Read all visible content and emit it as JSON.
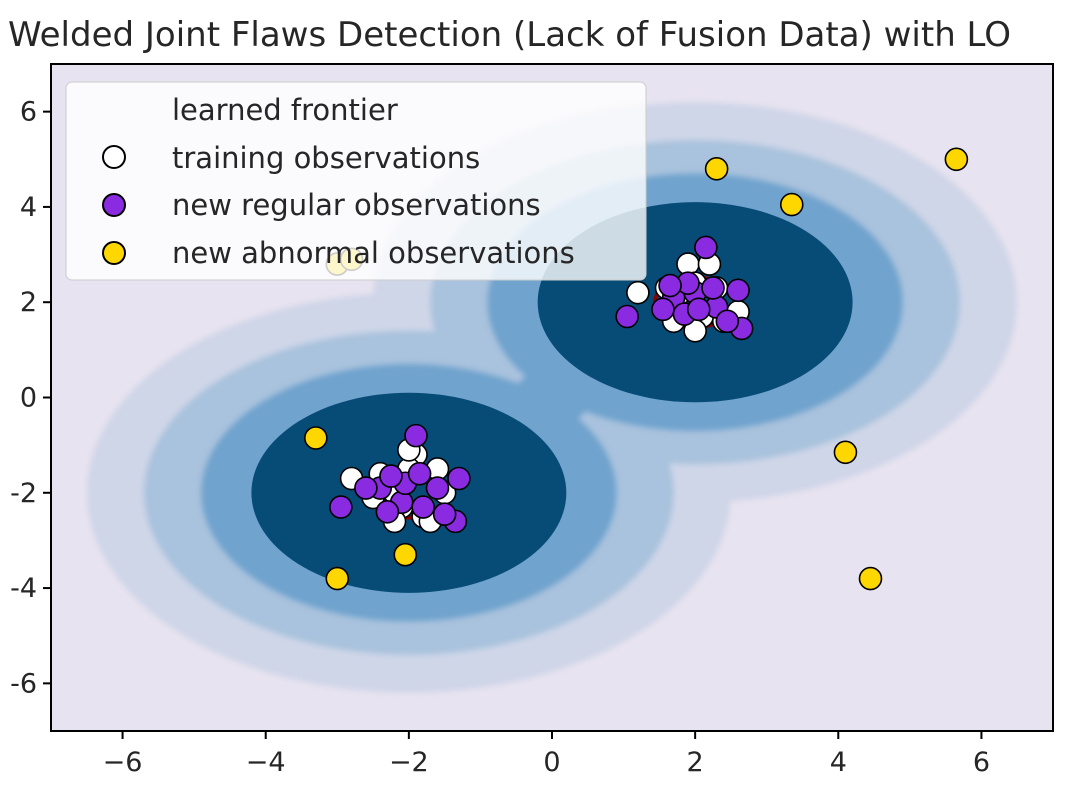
{
  "chart_data": {
    "type": "scatter",
    "title": "Welded Joint Flaws Detection (Lack of Fusion Data) with LO",
    "xlabel": "",
    "ylabel": "",
    "xlim": [
      -7,
      7
    ],
    "ylim": [
      -7,
      7
    ],
    "xticks": [
      -6,
      -4,
      -2,
      0,
      2,
      4,
      6
    ],
    "yticks": [
      -6,
      -4,
      -2,
      0,
      2,
      4,
      6
    ],
    "xtick_labels": [
      "−6",
      "−4",
      "−2",
      "0",
      "2",
      "4",
      "6"
    ],
    "ytick_labels": [
      "-6",
      "-4",
      "-2",
      "0",
      "2",
      "4",
      "6"
    ],
    "grid": false,
    "legend_position": "top-left",
    "legend": [
      {
        "label": "learned frontier",
        "marker": "none"
      },
      {
        "label": "training observations",
        "marker": "circle",
        "color": "#ffffff"
      },
      {
        "label": "new regular observations",
        "marker": "circle",
        "color": "#8a2be2"
      },
      {
        "label": "new abnormal observations",
        "marker": "circle",
        "color": "#ffd700"
      }
    ],
    "colors": {
      "frontier": "#8b0000",
      "levels": [
        "#e8e3f0",
        "#cfd6e8",
        "#a9c2dd",
        "#6fa3cd",
        "#3b87bf",
        "#0f69a6",
        "#074b77"
      ],
      "training": "#ffffff",
      "regular": "#8a2be2",
      "abnormal": "#ffd700"
    },
    "series": [
      {
        "name": "training observations",
        "points": [
          [
            -2.3,
            -1.7
          ],
          [
            -2.2,
            -2.0
          ],
          [
            -1.9,
            -1.2
          ],
          [
            -2.1,
            -2.3
          ],
          [
            -1.6,
            -1.5
          ],
          [
            -1.8,
            -2.5
          ],
          [
            -2.5,
            -2.1
          ],
          [
            -1.5,
            -2.0
          ],
          [
            -2.0,
            -1.5
          ],
          [
            -2.4,
            -1.6
          ],
          [
            -2.8,
            -1.7
          ],
          [
            -2.0,
            -1.1
          ],
          [
            -1.7,
            -2.6
          ],
          [
            -2.2,
            -2.6
          ],
          [
            1.8,
            2.2
          ],
          [
            2.1,
            1.7
          ],
          [
            2.3,
            2.3
          ],
          [
            1.9,
            2.8
          ],
          [
            1.7,
            1.6
          ],
          [
            2.4,
            1.6
          ],
          [
            2.0,
            2.4
          ],
          [
            1.6,
            2.3
          ],
          [
            2.2,
            2.8
          ],
          [
            1.2,
            2.2
          ],
          [
            2.6,
            1.8
          ],
          [
            2.0,
            1.4
          ]
        ]
      },
      {
        "name": "new regular observations",
        "points": [
          [
            -1.9,
            -0.8
          ],
          [
            -2.4,
            -1.9
          ],
          [
            -2.1,
            -2.2
          ],
          [
            -1.8,
            -2.3
          ],
          [
            -1.6,
            -1.9
          ],
          [
            -2.3,
            -2.4
          ],
          [
            -1.3,
            -1.7
          ],
          [
            -1.35,
            -2.6
          ],
          [
            -2.95,
            -2.3
          ],
          [
            -2.05,
            -1.8
          ],
          [
            -1.85,
            -1.6
          ],
          [
            -2.6,
            -1.9
          ],
          [
            -1.5,
            -2.45
          ],
          [
            -2.25,
            -1.65
          ],
          [
            2.15,
            3.15
          ],
          [
            1.7,
            2.1
          ],
          [
            2.0,
            2.2
          ],
          [
            2.3,
            1.9
          ],
          [
            1.85,
            1.75
          ],
          [
            2.6,
            2.25
          ],
          [
            1.05,
            1.7
          ],
          [
            2.65,
            1.45
          ],
          [
            1.55,
            1.85
          ],
          [
            2.45,
            1.6
          ],
          [
            2.05,
            1.85
          ],
          [
            1.9,
            2.4
          ],
          [
            2.25,
            2.3
          ],
          [
            1.65,
            2.35
          ]
        ]
      },
      {
        "name": "new abnormal observations",
        "points": [
          [
            2.3,
            4.8
          ],
          [
            3.35,
            4.05
          ],
          [
            5.65,
            5.0
          ],
          [
            -3.3,
            -0.85
          ],
          [
            4.1,
            -1.15
          ],
          [
            -3.0,
            -3.8
          ],
          [
            -2.05,
            -3.3
          ],
          [
            4.45,
            -3.8
          ],
          [
            -3.0,
            2.8
          ],
          [
            -2.8,
            2.9
          ]
        ]
      }
    ]
  }
}
